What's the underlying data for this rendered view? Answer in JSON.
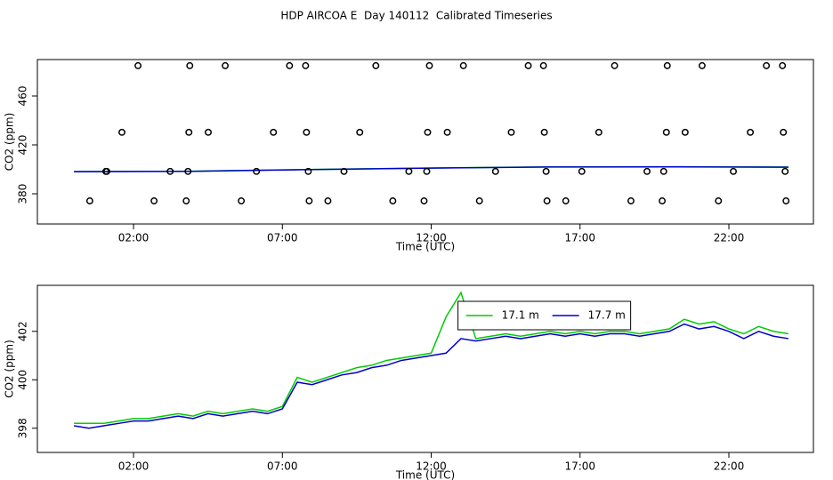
{
  "chart_data": [
    {
      "type": "line",
      "title": "HDP AIRCOA E  Day 140112  Calibrated Timeseries",
      "xlabel": "Time (UTC)",
      "ylabel": "CO2 (ppm)",
      "xlim": [
        -1.23,
        24.84
      ],
      "ylim": [
        355.3,
        489.8
      ],
      "xticks": [
        {
          "value": 2,
          "label": "02:00"
        },
        {
          "value": 7,
          "label": "07:00"
        },
        {
          "value": 12,
          "label": "12:00"
        },
        {
          "value": 17,
          "label": "17:00"
        },
        {
          "value": 22,
          "label": "22:00"
        }
      ],
      "yticks": [
        380,
        420,
        460
      ],
      "x": [
        0,
        4,
        8,
        12,
        16,
        20,
        24
      ],
      "series": [
        {
          "color": "#00cc00",
          "values": [
            398.2,
            398.5,
            399.9,
            401.1,
            402.0,
            402.1,
            401.9
          ]
        },
        {
          "color": "#0000cc",
          "values": [
            398.1,
            398.4,
            399.8,
            401.0,
            401.9,
            402.0,
            401.7
          ]
        }
      ],
      "points": {
        "color": "#000000",
        "x": [
          2.15,
          3.89,
          5.08,
          7.24,
          7.78,
          10.14,
          11.94,
          13.08,
          15.26,
          15.77,
          18.16,
          19.93,
          21.1,
          23.26,
          23.8,
          1.61,
          3.86,
          4.51,
          6.7,
          7.81,
          9.6,
          11.88,
          12.54,
          14.69,
          15.8,
          17.63,
          19.9,
          20.53,
          22.72,
          23.83,
          1.07,
          1.1,
          3.23,
          3.83,
          6.13,
          7.87,
          9.07,
          11.25,
          11.85,
          14.16,
          15.86,
          17.06,
          19.25,
          19.81,
          22.15,
          23.89,
          0.53,
          2.69,
          3.77,
          5.62,
          7.9,
          8.53,
          10.71,
          11.76,
          13.62,
          15.89,
          16.52,
          18.71,
          19.76,
          21.65,
          23.92
        ],
        "y": [
          484.8,
          484.8,
          484.8,
          484.8,
          484.8,
          484.8,
          484.8,
          484.8,
          484.8,
          484.8,
          484.8,
          484.8,
          484.8,
          484.8,
          484.8,
          430.3,
          430.3,
          430.3,
          430.3,
          430.3,
          430.3,
          430.3,
          430.3,
          430.3,
          430.3,
          430.3,
          430.3,
          430.3,
          430.3,
          430.3,
          398.3,
          398.3,
          398.3,
          398.3,
          398.3,
          398.3,
          398.3,
          398.3,
          398.3,
          398.3,
          398.3,
          398.3,
          398.3,
          398.3,
          398.3,
          398.3,
          374.2,
          374.2,
          374.2,
          374.2,
          374.2,
          374.2,
          374.2,
          374.2,
          374.2,
          374.2,
          374.2,
          374.2,
          374.2,
          374.2,
          374.2
        ]
      }
    },
    {
      "type": "line",
      "xlabel": "Time (UTC)",
      "ylabel": "CO2 (ppm)",
      "xlim": [
        -1.23,
        24.84
      ],
      "ylim": [
        397.0,
        403.9
      ],
      "xticks": [
        {
          "value": 2,
          "label": "02:00"
        },
        {
          "value": 7,
          "label": "07:00"
        },
        {
          "value": 12,
          "label": "12:00"
        },
        {
          "value": 17,
          "label": "17:00"
        },
        {
          "value": 22,
          "label": "22:00"
        }
      ],
      "yticks": [
        398,
        400,
        402
      ],
      "legend": "top",
      "x": [
        0,
        0.5,
        1,
        1.5,
        2,
        2.5,
        3,
        3.5,
        4,
        4.5,
        5,
        5.5,
        6,
        6.5,
        7,
        7.5,
        8,
        8.5,
        9,
        9.5,
        10,
        10.5,
        11,
        11.5,
        12,
        12.5,
        13,
        13.5,
        14,
        14.5,
        15,
        15.5,
        16,
        16.5,
        17,
        17.5,
        18,
        18.5,
        19,
        19.5,
        20,
        20.5,
        21,
        21.5,
        22,
        22.5,
        23,
        23.5,
        24
      ],
      "series": [
        {
          "name": "17.1 m",
          "color": "#00cc00",
          "values": [
            398.2,
            398.2,
            398.2,
            398.3,
            398.4,
            398.4,
            398.5,
            398.6,
            398.5,
            398.7,
            398.6,
            398.7,
            398.8,
            398.7,
            398.9,
            400.1,
            399.9,
            400.1,
            400.3,
            400.5,
            400.6,
            400.8,
            400.9,
            401.0,
            401.1,
            402.6,
            403.6,
            401.7,
            401.8,
            401.9,
            401.8,
            401.9,
            402.0,
            401.9,
            402.0,
            401.9,
            402.0,
            402.0,
            401.9,
            402.0,
            402.1,
            402.5,
            402.3,
            402.4,
            402.1,
            401.9,
            402.2,
            402.0,
            401.9
          ]
        },
        {
          "name": "17.7 m",
          "color": "#0000cc",
          "values": [
            398.1,
            398.0,
            398.1,
            398.2,
            398.3,
            398.3,
            398.4,
            398.5,
            398.4,
            398.6,
            398.5,
            398.6,
            398.7,
            398.6,
            398.8,
            399.9,
            399.8,
            400.0,
            400.2,
            400.3,
            400.5,
            400.6,
            400.8,
            400.9,
            401.0,
            401.1,
            401.7,
            401.6,
            401.7,
            401.8,
            401.7,
            401.8,
            401.9,
            401.8,
            401.9,
            401.8,
            401.9,
            401.9,
            401.8,
            401.9,
            402.0,
            402.3,
            402.1,
            402.2,
            402.0,
            401.7,
            402.0,
            401.8,
            401.7
          ]
        }
      ]
    }
  ]
}
